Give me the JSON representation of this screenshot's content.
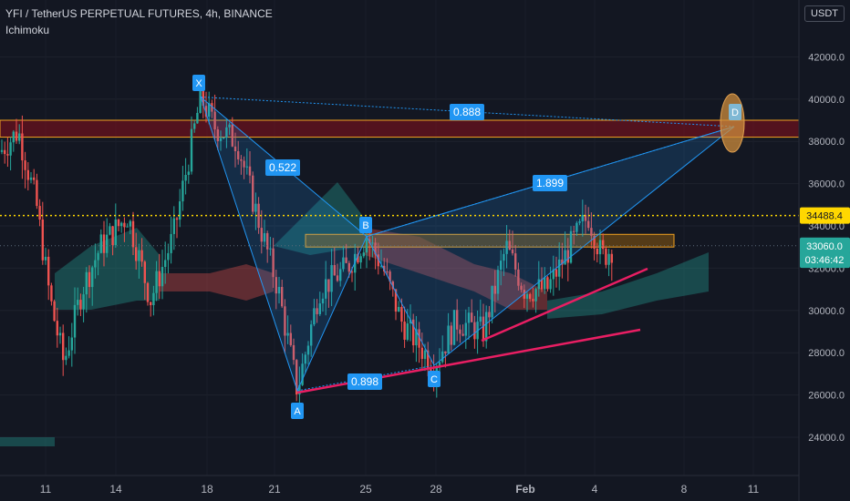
{
  "header": {
    "symbol": "YFI / TetherUS PERPETUAL FUTURES, 4h, BINANCE",
    "indicator": "Ichimoku",
    "currency_button": "USDT"
  },
  "chart_data": {
    "type": "candlestick",
    "ylim": [
      22700,
      43500
    ],
    "yticks": [
      "24000.0",
      "26000.0",
      "28000.0",
      "30000.0",
      "32000.0",
      "34000.0",
      "36000.0",
      "38000.0",
      "40000.0",
      "42000.0"
    ],
    "xticks": [
      "11",
      "14",
      "18",
      "21",
      "25",
      "28",
      "Feb",
      "4",
      "8",
      "11"
    ],
    "price_labels": [
      {
        "value": 34488.4,
        "text": "34488.4",
        "bg": "#ffd700",
        "fg": "#131722"
      },
      {
        "value": 33060.0,
        "text": "33060.0",
        "bg": "#26a69a",
        "fg": "#ffffff"
      },
      {
        "value": 32400.0,
        "text": "03:46:42",
        "bg": "#26a69a",
        "fg": "#ffffff"
      }
    ],
    "harmonic_pattern": {
      "points": [
        {
          "label": "X",
          "price": 40100
        },
        {
          "label": "A",
          "price": 26200
        },
        {
          "label": "B",
          "price": 33500
        },
        {
          "label": "C",
          "price": 27400
        },
        {
          "label": "D",
          "price": 38700
        }
      ],
      "ratios": [
        "0.522",
        "0.898",
        "0.888",
        "1.899"
      ]
    },
    "zones": [
      {
        "top": 39000,
        "bottom": 38200,
        "color": "#880e1b"
      },
      {
        "top": 33600,
        "bottom": 33000,
        "color": "#8a5a10"
      }
    ],
    "colors": {
      "up": "#26a69a",
      "down": "#ef5350",
      "pattern": "#2196f3",
      "trendline": "#e91e63",
      "dotted_level": "#ffd700",
      "background": "#131722"
    }
  }
}
